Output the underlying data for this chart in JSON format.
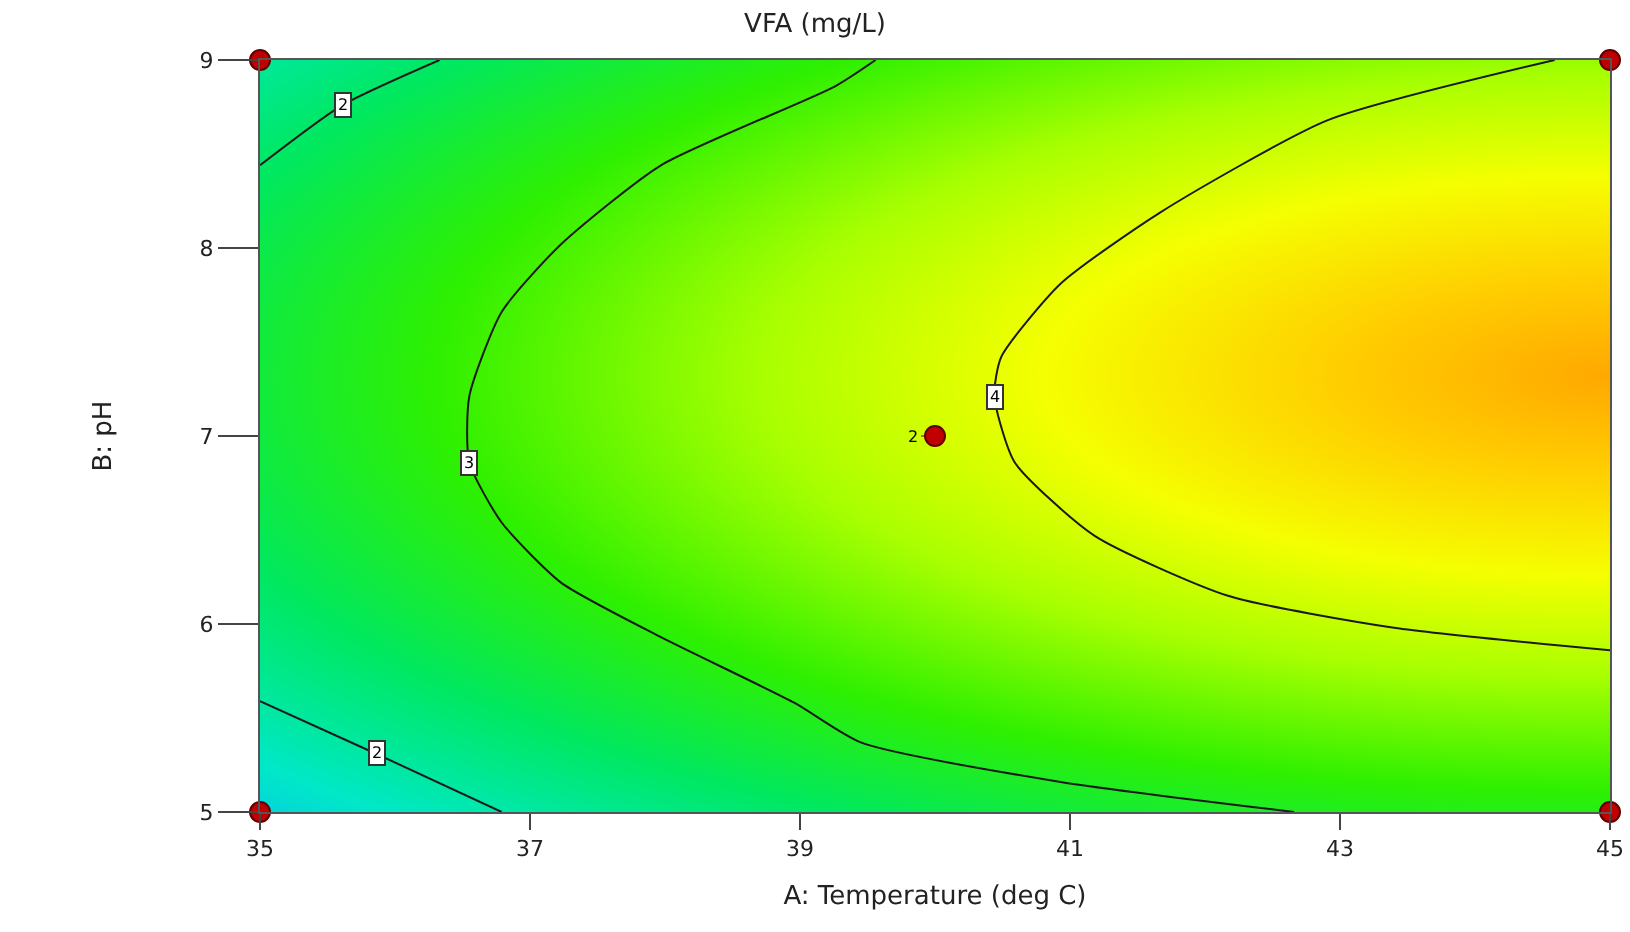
{
  "chart_data": {
    "type": "line",
    "title": "VFA (mg/L)",
    "xlabel": "A: Temperature (deg C)",
    "ylabel": "B: pH",
    "series": [
      {
        "name": "2",
        "color": "#1a1a1a",
        "x": [
          35,
          35.61,
          36.33
        ],
        "values": [
          8.44,
          8.76,
          9
        ]
      },
      {
        "name": "2",
        "color": "#1a1a1a",
        "x": [
          35,
          35.86,
          36.79
        ],
        "values": [
          5.59,
          5.31,
          5
        ]
      },
      {
        "name": "3",
        "color": "#1a1a1a",
        "x": [
          39.56,
          39.26,
          37.97,
          37.23,
          36.79,
          36.55,
          36.55,
          36.79,
          37.23,
          37.97,
          38.96,
          39.45,
          40.93,
          42.66
        ],
        "values": [
          9,
          8.86,
          8.44,
          8.02,
          7.66,
          7.21,
          6.86,
          6.54,
          6.22,
          5.93,
          5.58,
          5.37,
          5.16,
          5
        ]
      },
      {
        "name": "4",
        "color": "#1a1a1a",
        "x": [
          44.59,
          42.91,
          41.67,
          40.93,
          40.49,
          40.44,
          40.59,
          41.18,
          42.17,
          43.4,
          45
        ],
        "values": [
          9,
          8.68,
          8.19,
          7.81,
          7.42,
          7.21,
          6.86,
          6.47,
          6.15,
          5.98,
          5.86
        ]
      },
      {
        "type": "scatter",
        "color": "#c00000",
        "marker": "circle",
        "x": [
          35,
          35,
          45,
          45,
          40
        ],
        "values": [
          9,
          5,
          9,
          5,
          7
        ]
      }
    ],
    "annotations": [
      {
        "text": "2",
        "x": 40,
        "y": 7
      }
    ],
    "xlim": [
      35,
      45
    ],
    "xticks": [
      35,
      37,
      39,
      41,
      43,
      45
    ],
    "ylim": [
      5,
      9
    ],
    "yticks": [
      5,
      6,
      7,
      8,
      9
    ],
    "legend": false
  }
}
